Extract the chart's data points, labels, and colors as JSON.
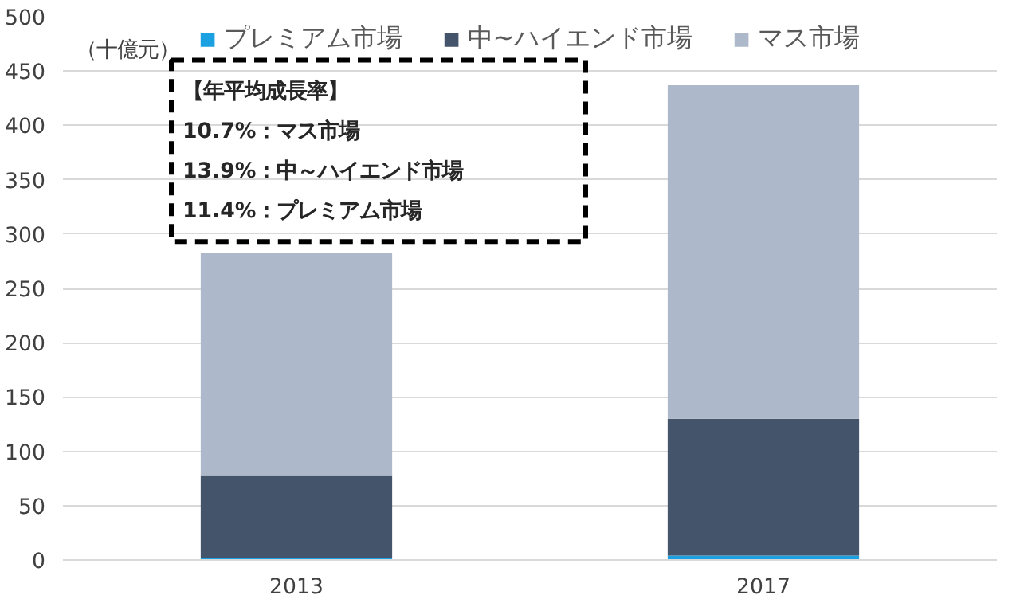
{
  "chart_data": {
    "type": "bar",
    "stacked": true,
    "ylabel": "（十億元）",
    "categories": [
      "2013",
      "2017"
    ],
    "series": [
      {
        "name": "プレミアム市場",
        "color": "#1ba1e2",
        "values": [
          2,
          4
        ]
      },
      {
        "name": "中~ハイエンド市場",
        "color": "#44546a",
        "values": [
          76,
          126
        ]
      },
      {
        "name": "マス市場",
        "color": "#adb9ca",
        "values": [
          205,
          307
        ]
      }
    ],
    "ylim": [
      0,
      500
    ],
    "yticks": [
      0,
      50,
      100,
      150,
      200,
      250,
      300,
      350,
      400,
      450,
      500
    ],
    "grid": "y",
    "legend": "top",
    "annotations": [
      "【年平均成長率】",
      "10.7%：マス市場",
      "13.9%：中～ハイエンド市場",
      "11.4%：プレミアム市場"
    ]
  }
}
